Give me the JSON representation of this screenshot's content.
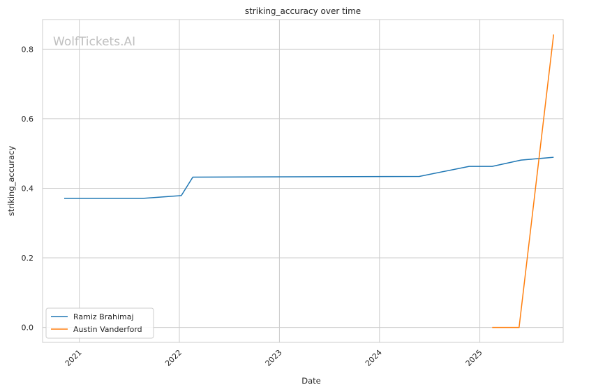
{
  "chart_data": {
    "type": "line",
    "title": "striking_accuracy over time",
    "xlabel": "Date",
    "ylabel": "striking_accuracy",
    "watermark": "WolfTickets.AI",
    "x_ticks": [
      "2021",
      "2022",
      "2023",
      "2024",
      "2025"
    ],
    "y_ticks": [
      "0.0",
      "0.2",
      "0.4",
      "0.6",
      "0.8"
    ],
    "ylim": [
      -0.043,
      0.885
    ],
    "xlim": [
      "2020-08-20",
      "2025-11-01"
    ],
    "grid": true,
    "legend_position": "lower-left",
    "series": [
      {
        "name": "Ramiz Brahimaj",
        "color": "#1f77b4",
        "points": [
          {
            "x": "2020-11-07",
            "y": 0.371
          },
          {
            "x": "2021-08-21",
            "y": 0.371
          },
          {
            "x": "2022-01-08",
            "y": 0.379
          },
          {
            "x": "2022-02-19",
            "y": 0.432
          },
          {
            "x": "2024-05-25",
            "y": 0.434
          },
          {
            "x": "2024-11-23",
            "y": 0.463
          },
          {
            "x": "2025-02-15",
            "y": 0.463
          },
          {
            "x": "2025-05-31",
            "y": 0.481
          },
          {
            "x": "2025-09-27",
            "y": 0.489
          }
        ]
      },
      {
        "name": "Austin Vanderford",
        "color": "#ff7f0e",
        "points": [
          {
            "x": "2025-02-15",
            "y": 0.0
          },
          {
            "x": "2025-05-24",
            "y": 0.0
          },
          {
            "x": "2025-09-27",
            "y": 0.842
          }
        ]
      }
    ]
  }
}
